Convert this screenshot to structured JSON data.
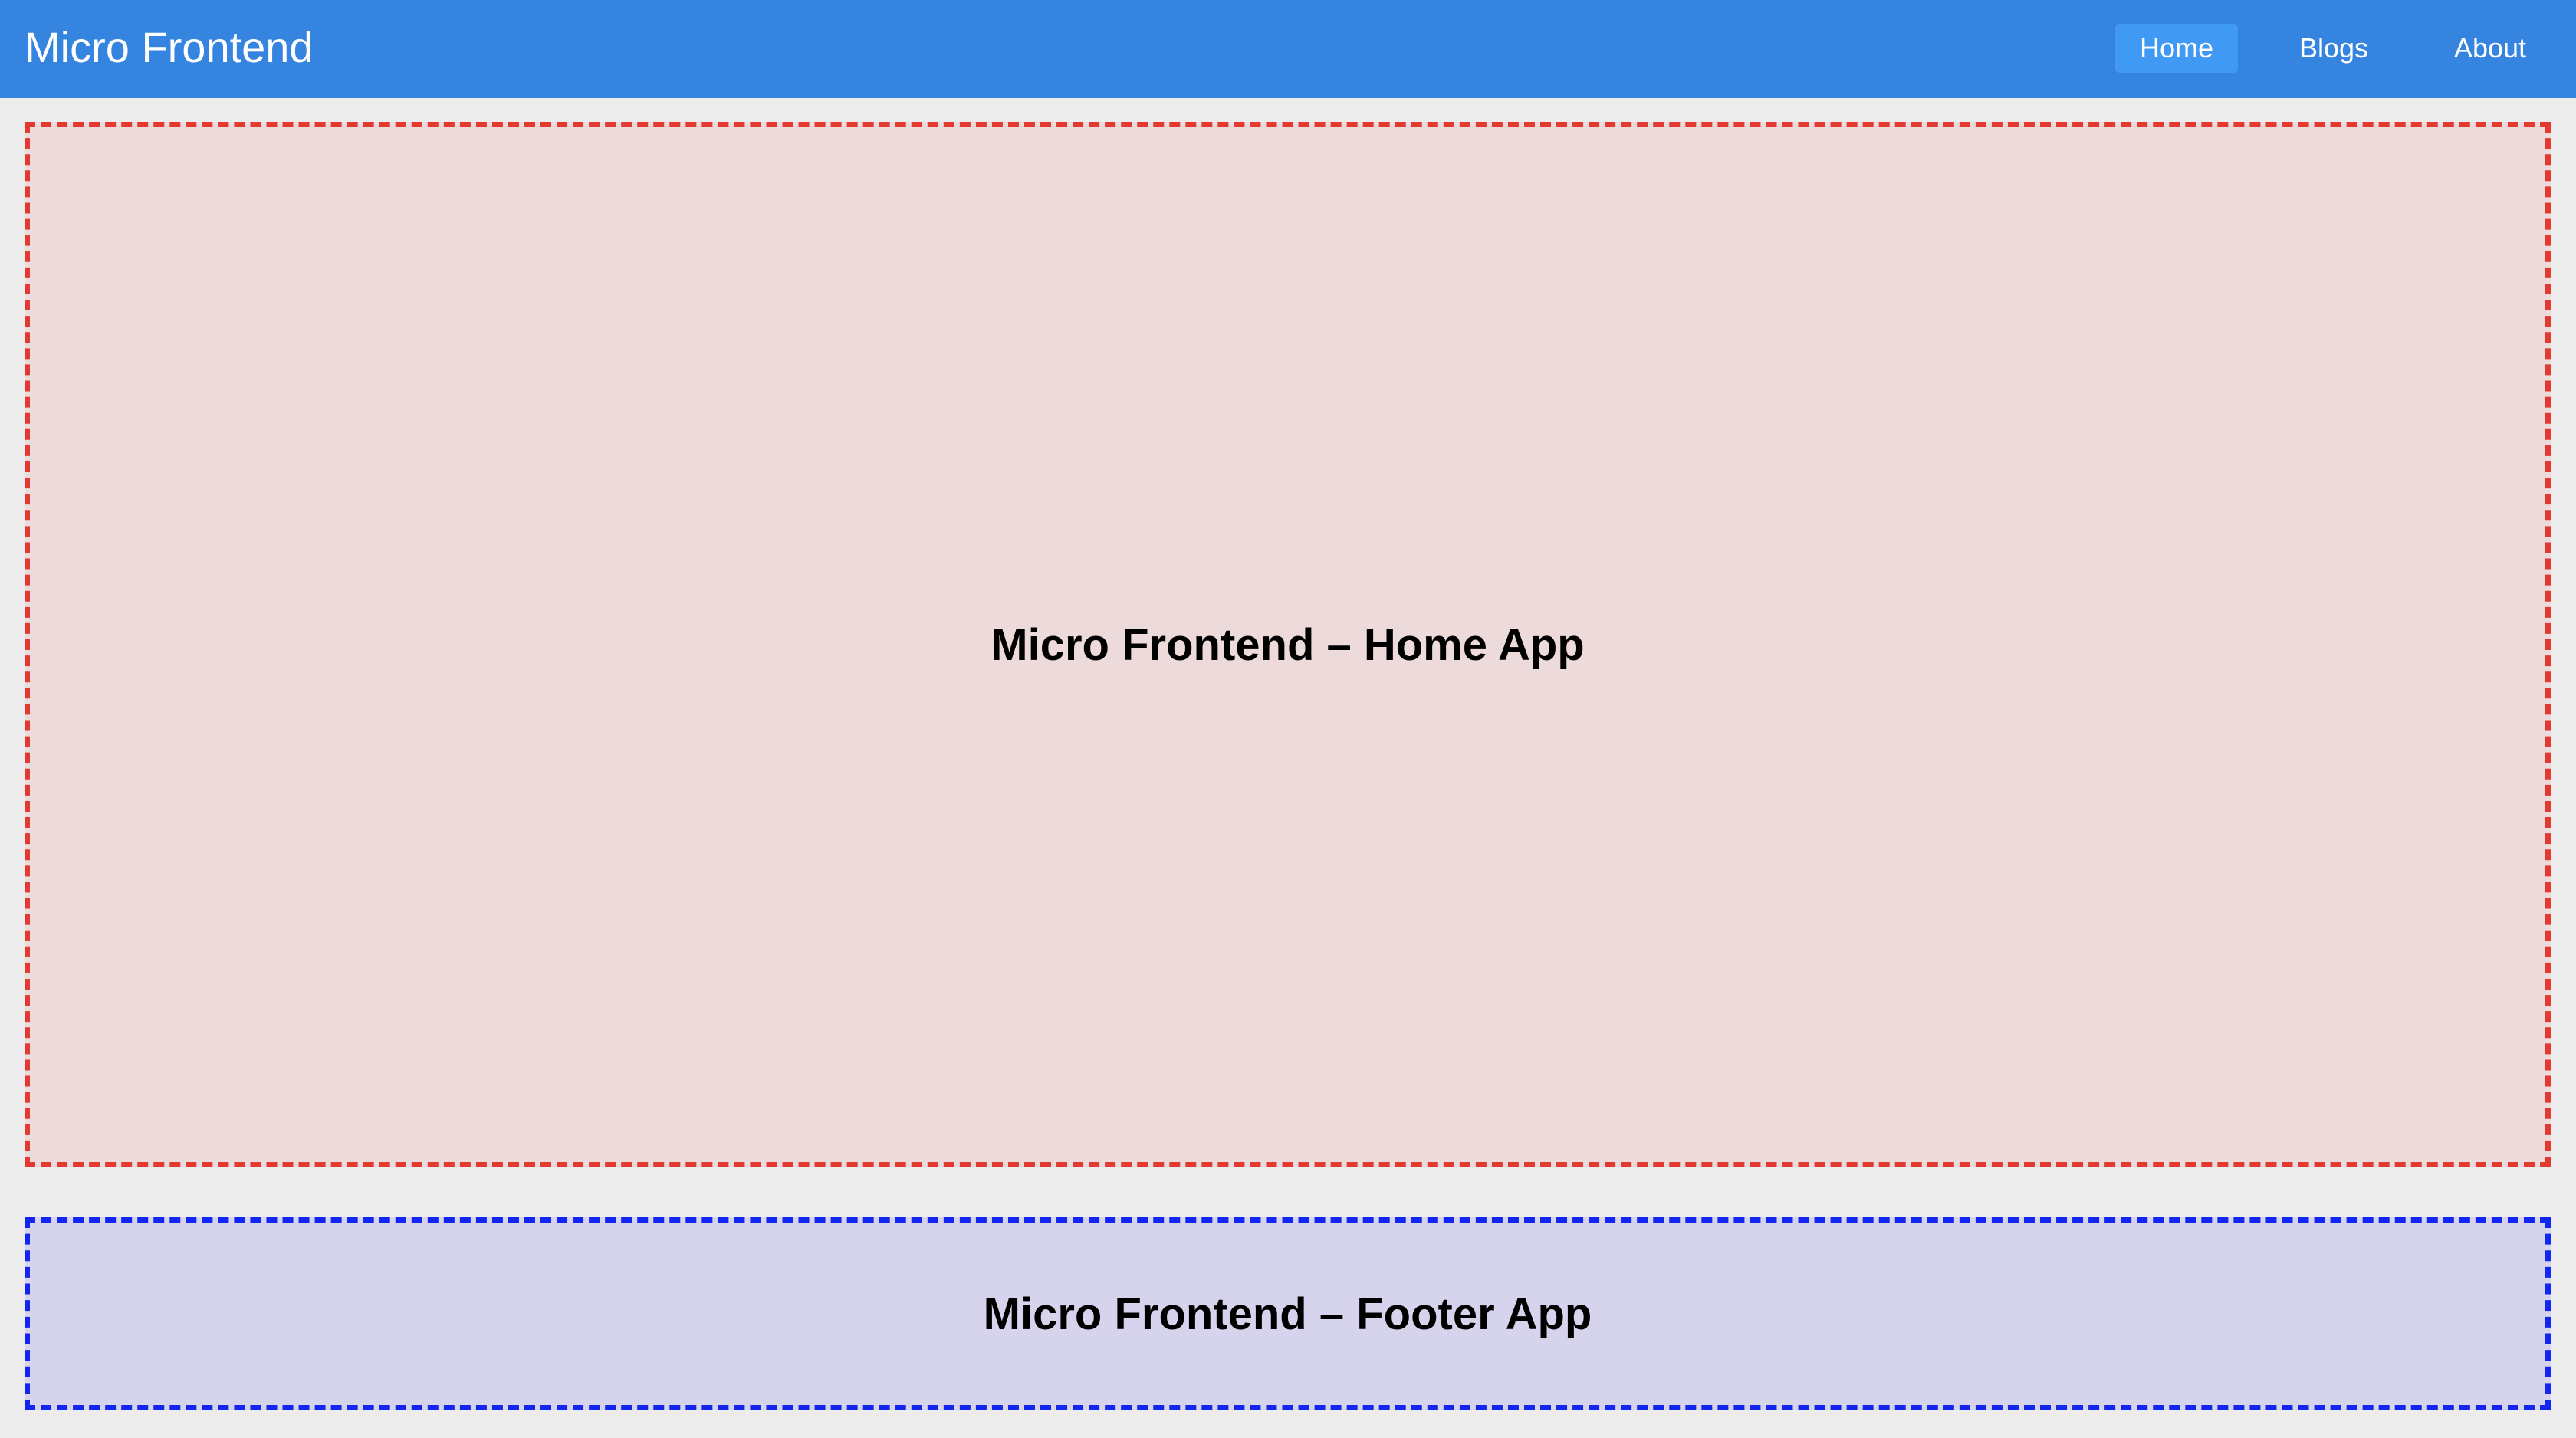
{
  "colors": {
    "navbar": "#3584e0",
    "active_nav": "#4099f2",
    "page_background": "#ececec",
    "home_border": "#e23a30",
    "home_background": "#eddada",
    "footer_border": "#1226f0",
    "footer_background": "#d5d4ec"
  },
  "header": {
    "brand": "Micro Frontend",
    "nav": [
      {
        "label": "Home",
        "active": true
      },
      {
        "label": "Blogs",
        "active": false
      },
      {
        "label": "About",
        "active": false
      }
    ]
  },
  "main": {
    "home_app_title": "Micro Frontend – Home App"
  },
  "footer": {
    "footer_app_title": "Micro Frontend – Footer App"
  }
}
